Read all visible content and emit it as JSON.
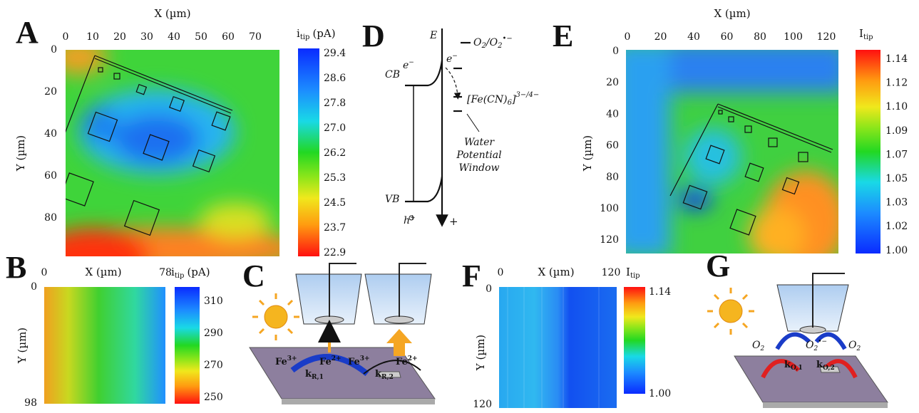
{
  "panels": {
    "A": {
      "letter": "A",
      "x_label": "X (µm)",
      "y_label": "Y (µm)",
      "x_ticks": [
        "0",
        "10",
        "20",
        "30",
        "40",
        "50",
        "60",
        "70"
      ],
      "y_ticks": [
        "0",
        "20",
        "40",
        "60",
        "80"
      ],
      "cbar_symbol": "i",
      "cbar_sub": "tip",
      "cbar_unit": "(pA)",
      "cbar_ticks": [
        "29.4",
        "28.6",
        "27.8",
        "27.0",
        "26.2",
        "25.3",
        "24.5",
        "23.7",
        "22.9"
      ]
    },
    "B": {
      "letter": "B",
      "x_label": "X (µm)",
      "y_label": "Y (µm)",
      "x_ticks": [
        "0",
        "78"
      ],
      "y_ticks": [
        "0",
        "98"
      ],
      "cbar_symbol": "i",
      "cbar_sub": "tip",
      "cbar_unit": "(pA)",
      "cbar_ticks": [
        "310",
        "290",
        "270",
        "250"
      ]
    },
    "C": {
      "letter": "C",
      "fe3_left": "Fe",
      "fe3_left_sup": "3+",
      "fe2_left": "Fe",
      "fe2_left_sup": "2+",
      "k1": "k",
      "k1_sub": "R,1",
      "fe3_right": "Fe",
      "fe3_right_sup": "3+",
      "fe2_right": "Fe",
      "fe2_right_sup": "2+",
      "k2": "k",
      "k2_sub": "R,2"
    },
    "D": {
      "letter": "D",
      "e_axis": "E",
      "o2": "O",
      "o2_sub": "2",
      "o2_slash": "/O",
      "o2r_sub": "2",
      "o2r_sup": "•−",
      "e_minus_1": "e",
      "e_minus_1_sup": "−",
      "e_minus_2": "e",
      "e_minus_2_sup": "−",
      "cb": "CB",
      "vb": "VB",
      "fecn": "[Fe(CN)",
      "fecn_sub": "6",
      "fecn_end": "]",
      "fecn_sup": "3−/4−",
      "window_1": "Water",
      "window_2": "Potential",
      "window_3": "Window",
      "hole": "h",
      "hole_sup": "+",
      "plus": "+"
    },
    "E": {
      "letter": "E",
      "x_label": "X (µm)",
      "y_label": "Y (µm)",
      "x_ticks": [
        "0",
        "20",
        "40",
        "60",
        "80",
        "100",
        "120"
      ],
      "y_ticks": [
        "0",
        "20",
        "40",
        "60",
        "80",
        "100",
        "120"
      ],
      "cbar_symbol": "I",
      "cbar_sub": "tip",
      "cbar_ticks": [
        "1.14",
        "1.12",
        "1.10",
        "1.09",
        "1.07",
        "1.05",
        "1.03",
        "1.02",
        "1.00"
      ]
    },
    "F": {
      "letter": "F",
      "x_label": "X (µm)",
      "y_label": "Y (µm)",
      "x_ticks": [
        "0",
        "120"
      ],
      "y_ticks": [
        "0",
        "120"
      ],
      "cbar_symbol": "I",
      "cbar_sub": "tip",
      "cbar_ticks": [
        "1.14",
        "1.00"
      ]
    },
    "G": {
      "letter": "G",
      "o2_left": "O",
      "o2_left_sub": "2",
      "o2_mid": "O",
      "o2_mid_sub": "2",
      "o2_mid_sup": "•−",
      "o2_right": "O",
      "o2_right_sub": "2",
      "k1": "k",
      "k1_sub": "O,1",
      "k2": "k",
      "k2_sub": "O,2"
    }
  }
}
